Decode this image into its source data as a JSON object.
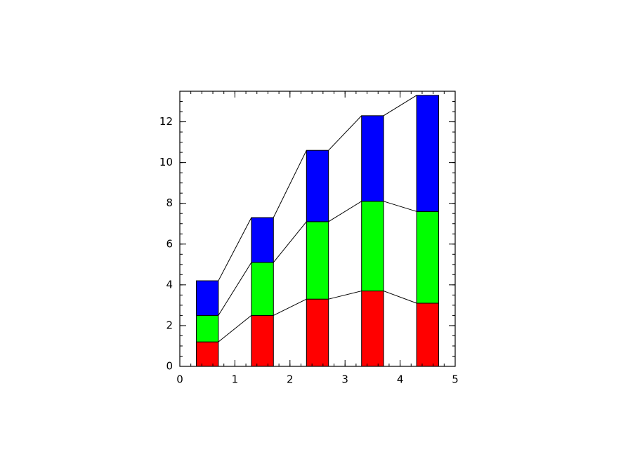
{
  "chart_data": {
    "type": "stacked-bar",
    "x": [
      0.5,
      1.5,
      2.5,
      3.5,
      4.5
    ],
    "series": [
      {
        "color": "#ff0000",
        "values": [
          1.2,
          2.5,
          3.3,
          3.7,
          3.1
        ]
      },
      {
        "color": "#00ff00",
        "values": [
          1.3,
          2.6,
          3.8,
          4.4,
          4.5
        ]
      },
      {
        "color": "#0000ff",
        "values": [
          1.7,
          2.2,
          3.5,
          4.2,
          5.7
        ]
      }
    ],
    "xlim": [
      0,
      5
    ],
    "xticks": [
      0,
      1,
      2,
      3,
      4,
      5
    ],
    "ylim": [
      0,
      13.5
    ],
    "yticks": [
      0,
      2,
      4,
      6,
      8,
      10,
      12
    ]
  }
}
